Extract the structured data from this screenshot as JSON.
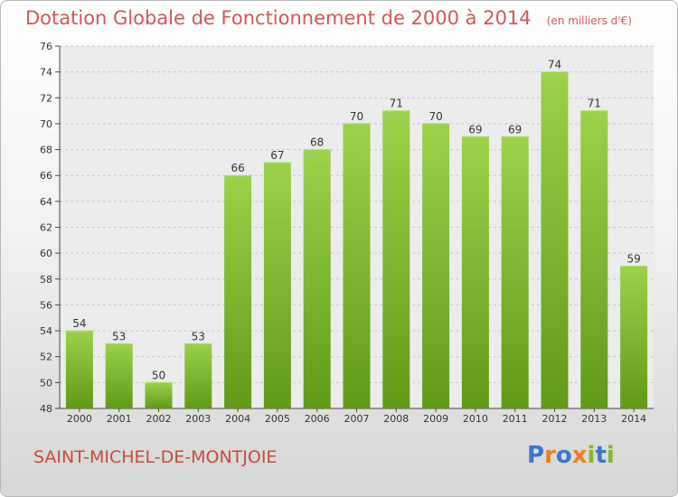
{
  "chart_data": {
    "type": "bar",
    "title": "Dotation Globale de Fonctionnement de 2000 à 2014",
    "subtitle": "(en milliers d'€)",
    "categories": [
      "2000",
      "2001",
      "2002",
      "2003",
      "2004",
      "2005",
      "2006",
      "2007",
      "2008",
      "2009",
      "2010",
      "2011",
      "2012",
      "2013",
      "2014"
    ],
    "values": [
      54,
      53,
      50,
      53,
      66,
      67,
      68,
      70,
      71,
      70,
      69,
      69,
      74,
      71,
      59
    ],
    "ylim": [
      48,
      76
    ],
    "yticks": [
      48,
      50,
      52,
      54,
      56,
      58,
      60,
      62,
      64,
      66,
      68,
      70,
      72,
      74,
      76
    ],
    "grid": true,
    "bar_color": "#7fb631"
  },
  "footer": {
    "city": "SAINT-MICHEL-DE-MONTJOIE",
    "logo": "Proxiti"
  },
  "colors": {
    "title": "#d45757",
    "city": "#c94a3a",
    "logo_letters": [
      "#3a78c9",
      "#e8821e",
      "#3a78c9",
      "#e8821e",
      "#82b82a",
      "#3a78c9",
      "#82b82a"
    ]
  }
}
